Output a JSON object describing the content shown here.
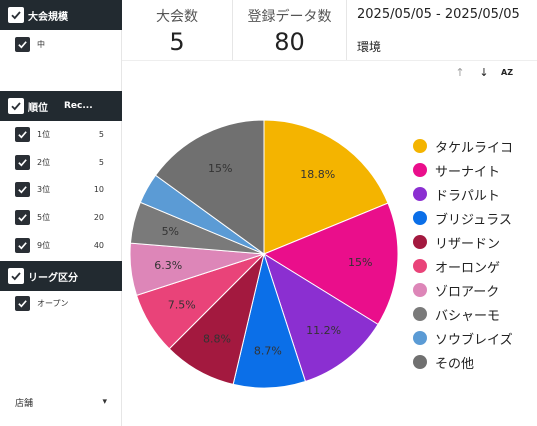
{
  "filters": {
    "tournament_scale": {
      "label": "大会規模",
      "items": [
        {
          "label": "中",
          "checked": true
        }
      ]
    },
    "rank": {
      "label": "順位",
      "col_label": "Rec...",
      "items": [
        {
          "label": "1位",
          "count": "5",
          "checked": true
        },
        {
          "label": "2位",
          "count": "5",
          "checked": true
        },
        {
          "label": "3位",
          "count": "10",
          "checked": true
        },
        {
          "label": "5位",
          "count": "20",
          "checked": true
        },
        {
          "label": "9位",
          "count": "40",
          "checked": true
        }
      ]
    },
    "league": {
      "label": "リーグ区分",
      "items": [
        {
          "label": "オープン",
          "checked": true
        }
      ]
    },
    "store": {
      "label": "店舗",
      "arrow": "▾"
    }
  },
  "scorecards": [
    {
      "label": "大会数",
      "value": "5"
    },
    {
      "label": "登録データ数",
      "value": "80"
    }
  ],
  "date_range": "2025/05/05 - 2025/05/05",
  "environment_label": "環境",
  "chart_tools": {
    "sort_up": "↑",
    "sort_down": "↓",
    "sort_az": "AZ",
    "sort_up_color": "#9e9e9e",
    "sort_down_color": "#222222"
  },
  "chart_data": {
    "type": "pie",
    "title": "",
    "legend_position": "right",
    "slices": [
      {
        "name": "タケルライコ",
        "value": 18.8,
        "label": "18.8%",
        "color": "#f4b400"
      },
      {
        "name": "サーナイト",
        "value": 15,
        "label": "15%",
        "color": "#ea0e8b"
      },
      {
        "name": "ドラパルト",
        "value": 11.2,
        "label": "11.2%",
        "color": "#8b2fd1"
      },
      {
        "name": "ブリジュラス",
        "value": 8.7,
        "label": "8.7%",
        "color": "#0b6fe8"
      },
      {
        "name": "リザードン",
        "value": 8.8,
        "label": "8.8%",
        "color": "#a3193f"
      },
      {
        "name": "オーロンゲ",
        "value": 7.5,
        "label": "7.5%",
        "color": "#e94379"
      },
      {
        "name": "ゾロアーク",
        "value": 6.3,
        "label": "6.3%",
        "color": "#dd86b8"
      },
      {
        "name": "バシャーモ",
        "value": 5,
        "label": "5%",
        "color": "#7a7a7a"
      },
      {
        "name": "ソウブレイズ",
        "value": 3.7,
        "label": "",
        "color": "#5b9bd5"
      },
      {
        "name": "その他",
        "value": 15,
        "label": "15%",
        "color": "#707070"
      }
    ]
  }
}
